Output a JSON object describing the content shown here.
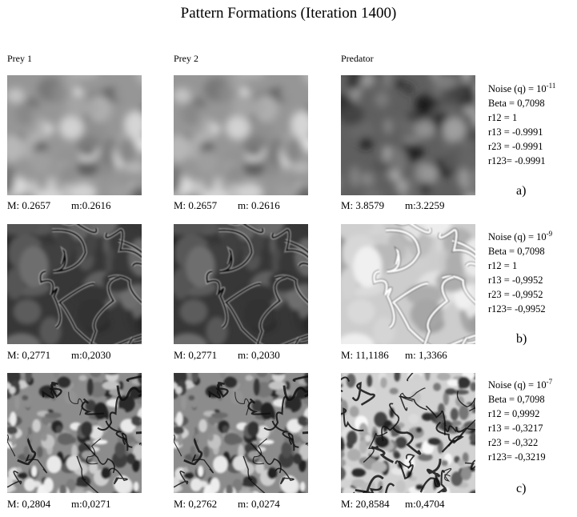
{
  "title": "Pattern Formations (Iteration 1400)",
  "columns": [
    "Prey 1",
    "Prey 2",
    "Predator"
  ],
  "rows": [
    {
      "label": "a)",
      "style": "mottled",
      "captions": [
        {
          "M": "M: 0.2657",
          "m": "m:0.2616"
        },
        {
          "M": "M: 0.2657",
          "m": "m: 0.2616"
        },
        {
          "M": "M: 3.8579",
          "m": "m:3.2259"
        }
      ],
      "params": {
        "noise_prefix": "Noise (q) = 10",
        "noise_exp": "-11",
        "beta": "Beta =  0,7098",
        "r12": "r12 =  1",
        "r13": "r13 = -0.9991",
        "r23": "r23 = -0.9991",
        "r123": "r123= -0.9991"
      }
    },
    {
      "label": "b)",
      "style": "cells",
      "captions": [
        {
          "M": "M: 0,2771",
          "m": "m:0,2030"
        },
        {
          "M": "M: 0,2771",
          "m": "m: 0,2030"
        },
        {
          "M": "M: 11,1186",
          "m": "m: 1,3366"
        }
      ],
      "params": {
        "noise_prefix": "Noise (q) = 10",
        "noise_exp": "-9",
        "beta": "Beta =  0,7098",
        "r12": "r12 =  1",
        "r13": "r13 = -0,9952",
        "r23": "r23 = -0,9952",
        "r123": "r123= -0,9952"
      }
    },
    {
      "label": "c)",
      "style": "turbulent",
      "captions": [
        {
          "M": "M: 0,2804",
          "m": "m:0,0271"
        },
        {
          "M": "M: 0,2762",
          "m": "m: 0,0274"
        },
        {
          "M": "M: 20,8584",
          "m": "m:0,4704"
        }
      ],
      "params": {
        "noise_prefix": "Noise (q) = 10",
        "noise_exp": "-7",
        "beta": "Beta =  0,7098",
        "r12": "r12 =  0,9992",
        "r13": "r13 = -0,3217",
        "r23": "r23 = -0,322",
        "r123": "r123= -0,3219"
      }
    }
  ]
}
